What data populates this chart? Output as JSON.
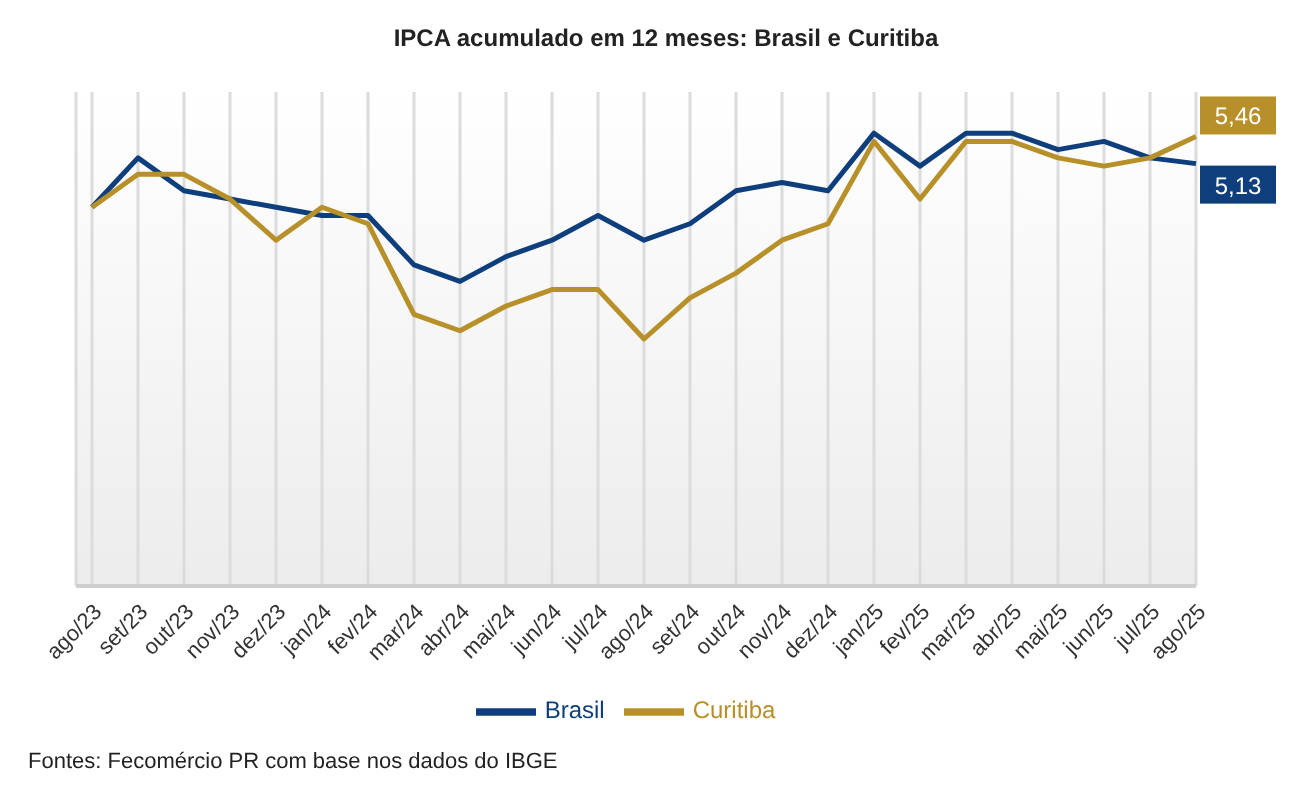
{
  "chart_data": {
    "type": "line",
    "title": "IPCA acumulado em 12 meses: Brasil e Curitiba",
    "categories": [
      "ago/23",
      "set/23",
      "out/23",
      "nov/23",
      "dez/23",
      "jan/24",
      "fev/24",
      "mar/24",
      "abr/24",
      "mai/24",
      "jun/24",
      "jul/24",
      "ago/24",
      "set/24",
      "out/24",
      "nov/24",
      "dez/24",
      "jan/25",
      "fev/25",
      "mar/25",
      "abr/25",
      "mai/25",
      "jun/25",
      "jul/25",
      "ago/25"
    ],
    "ylim": [
      0,
      6
    ],
    "tick_labels": "x",
    "series": [
      {
        "name": "Brasil",
        "color": "#0e3f7c",
        "values": [
          4.6,
          5.2,
          4.8,
          4.7,
          4.6,
          4.5,
          4.5,
          3.9,
          3.7,
          4.0,
          4.2,
          4.5,
          4.2,
          4.4,
          4.8,
          4.9,
          4.8,
          5.5,
          5.1,
          5.5,
          5.5,
          5.3,
          5.4,
          5.2,
          5.13
        ],
        "value_labels": [
          null,
          null,
          null,
          null,
          null,
          null,
          null,
          null,
          null,
          null,
          null,
          null,
          null,
          null,
          null,
          null,
          null,
          null,
          null,
          null,
          null,
          null,
          null,
          null,
          "5,13"
        ]
      },
      {
        "name": "Curitiba",
        "color": "#b8902a",
        "values": [
          4.6,
          5.0,
          5.0,
          4.7,
          4.2,
          4.6,
          4.4,
          3.3,
          3.1,
          3.4,
          3.6,
          3.6,
          3.0,
          3.5,
          3.8,
          4.2,
          4.4,
          5.4,
          4.7,
          5.4,
          5.4,
          5.2,
          5.1,
          5.2,
          5.46
        ],
        "value_labels": [
          null,
          null,
          null,
          null,
          null,
          null,
          null,
          null,
          null,
          null,
          null,
          null,
          null,
          null,
          null,
          null,
          null,
          null,
          null,
          null,
          null,
          null,
          null,
          null,
          "5,46"
        ]
      }
    ],
    "grid": "x",
    "legend": "bottom",
    "marker": "none",
    "line_style": "solid",
    "annotations": [
      "Fontes: Fecomércio PR com base nos dados do IBGE"
    ]
  }
}
